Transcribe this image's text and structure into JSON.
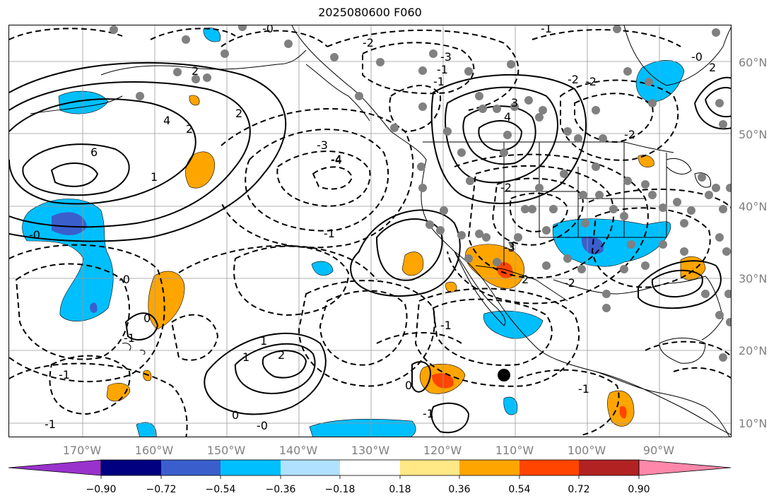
{
  "title": "2025080600 F060",
  "colors": {
    "land_outline": "#000000",
    "grid": "#999999",
    "station_dot": "#808080",
    "contour": "#000000"
  },
  "gridlines": {
    "lat_labels": [
      "60°N",
      "50°N",
      "40°N",
      "30°N",
      "20°N",
      "10°N"
    ],
    "lon_labels": [
      "170°W",
      "160°W",
      "150°W",
      "140°W",
      "130°W",
      "120°W",
      "110°W",
      "100°W",
      "90°W"
    ]
  },
  "contour_labels": [
    "-0",
    "-3",
    "-4",
    "-2",
    "-1",
    "4",
    "6",
    "2",
    "-1",
    "-2",
    "-3",
    "-4",
    "-1",
    "3",
    "4",
    "2",
    "-2",
    "-3",
    "-2",
    "3",
    "-0",
    "-2",
    "1",
    "-0",
    "2",
    "-1",
    "1",
    "-1",
    "1",
    "2",
    "2",
    "0",
    "-1",
    "-0",
    "0",
    "0",
    "-1",
    "-1",
    "-1",
    "2",
    "-0",
    "-2",
    "-1"
  ],
  "colorbar": {
    "bins": [
      "#9932cc",
      "#000080",
      "#3a5fcd",
      "#00bfff",
      "#b0e2ff",
      "#ffffff",
      "#ffe885",
      "#ffa500",
      "#ff4500",
      "#b22222",
      "#ff88aa"
    ],
    "tick_labels": [
      "−0.90",
      "−0.72",
      "−0.54",
      "−0.36",
      "−0.18",
      "0.18",
      "0.36",
      "0.54",
      "0.72",
      "0.90"
    ]
  }
}
